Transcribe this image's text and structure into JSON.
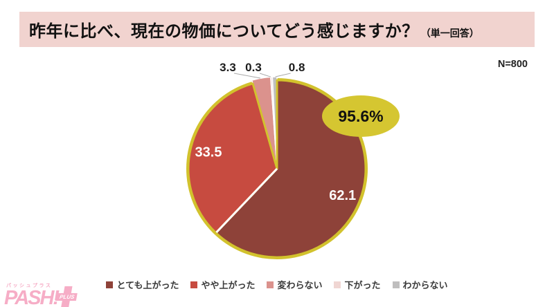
{
  "title": {
    "main": "昨年に比べ、現在の物価についてどう感じますか？",
    "suffix": "（単一回答）"
  },
  "sample_size": "N=800",
  "chart_data": {
    "type": "pie",
    "title": "昨年に比べ、現在の物価についてどう感じますか？（単一回答）",
    "unit": "percent",
    "sample_size": 800,
    "start_angle_deg": 0,
    "direction": "clockwise",
    "categories": [
      "とても上がった",
      "やや上がった",
      "変わらない",
      "下がった",
      "わからない"
    ],
    "values": [
      62.1,
      33.5,
      3.3,
      0.3,
      0.8
    ],
    "slice_colors": [
      "#8e4239",
      "#c74b40",
      "#db928d",
      "#f0d6d3",
      "#bfbebe"
    ],
    "outline_color": "#d2c22d",
    "callout": {
      "label": "95.6%",
      "fill": "#d5c631"
    },
    "legend_position": "bottom"
  },
  "logo": {
    "ruby": "パッシュプラス",
    "name": "PASH!",
    "plus": "PLUS"
  },
  "colors": {
    "banner_bg": "#f1d3cf",
    "leader": "#a9a9a9",
    "legend_text": "#3a3a3a",
    "logo_pink": "#f6adc6",
    "big_label": "#ffffff",
    "small_label": "#1c1c1c"
  }
}
